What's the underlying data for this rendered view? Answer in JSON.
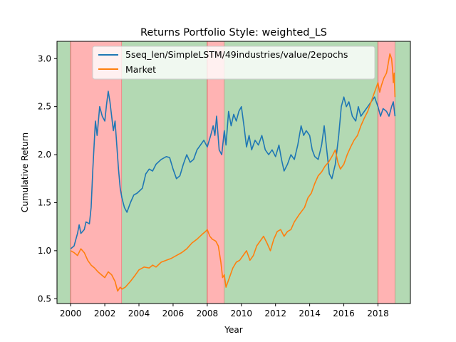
{
  "chart_data": {
    "type": "line",
    "title": "Returns Portfolio Style: weighted_LS",
    "xlabel": "Year",
    "ylabel": "Cumulative Return",
    "xlim": [
      1999.2,
      2019.9
    ],
    "ylim": [
      0.45,
      3.18
    ],
    "xticks": [
      2000,
      2002,
      2004,
      2006,
      2008,
      2010,
      2012,
      2014,
      2016,
      2018
    ],
    "xtick_labels": [
      "2000",
      "2002",
      "2004",
      "2006",
      "2008",
      "2010",
      "2012",
      "2014",
      "2016",
      "2018"
    ],
    "yticks": [
      0.5,
      1.0,
      1.5,
      2.0,
      2.5,
      3.0
    ],
    "ytick_labels": [
      "0.5",
      "1.0",
      "1.5",
      "2.0",
      "2.5",
      "3.0"
    ],
    "legend_position": "top-center",
    "regimes": [
      {
        "state": "bull",
        "start": 1999.2,
        "end": 2000.0,
        "color": "#b3d9b3"
      },
      {
        "state": "bear",
        "start": 2000.0,
        "end": 2003.0,
        "color": "#ffb3b3"
      },
      {
        "state": "bull",
        "start": 2003.0,
        "end": 2008.0,
        "color": "#b3d9b3"
      },
      {
        "state": "bear",
        "start": 2008.0,
        "end": 2009.0,
        "color": "#ffb3b3"
      },
      {
        "state": "bull",
        "start": 2009.0,
        "end": 2018.0,
        "color": "#b3d9b3"
      },
      {
        "state": "bear",
        "start": 2018.0,
        "end": 2019.0,
        "color": "#ffb3b3"
      },
      {
        "state": "bull",
        "start": 2019.0,
        "end": 2019.9,
        "color": "#b3d9b3"
      }
    ],
    "series": [
      {
        "name": "5seq_len/SimpleLSTM/49industries/value/2epochs",
        "color": "#1f77b4",
        "points": [
          [
            2000.0,
            1.02
          ],
          [
            2000.2,
            1.05
          ],
          [
            2000.4,
            1.18
          ],
          [
            2000.5,
            1.27
          ],
          [
            2000.6,
            1.18
          ],
          [
            2000.8,
            1.22
          ],
          [
            2000.9,
            1.3
          ],
          [
            2001.1,
            1.28
          ],
          [
            2001.2,
            1.45
          ],
          [
            2001.3,
            1.85
          ],
          [
            2001.45,
            2.35
          ],
          [
            2001.55,
            2.2
          ],
          [
            2001.7,
            2.5
          ],
          [
            2001.85,
            2.4
          ],
          [
            2002.0,
            2.35
          ],
          [
            2002.1,
            2.52
          ],
          [
            2002.2,
            2.66
          ],
          [
            2002.3,
            2.55
          ],
          [
            2002.4,
            2.4
          ],
          [
            2002.5,
            2.25
          ],
          [
            2002.6,
            2.35
          ],
          [
            2002.7,
            2.1
          ],
          [
            2002.8,
            1.85
          ],
          [
            2002.9,
            1.65
          ],
          [
            2003.0,
            1.55
          ],
          [
            2003.15,
            1.45
          ],
          [
            2003.3,
            1.4
          ],
          [
            2003.5,
            1.5
          ],
          [
            2003.7,
            1.58
          ],
          [
            2003.9,
            1.6
          ],
          [
            2004.2,
            1.65
          ],
          [
            2004.4,
            1.8
          ],
          [
            2004.6,
            1.85
          ],
          [
            2004.8,
            1.83
          ],
          [
            2005.0,
            1.9
          ],
          [
            2005.3,
            1.95
          ],
          [
            2005.6,
            1.98
          ],
          [
            2005.8,
            1.97
          ],
          [
            2006.0,
            1.85
          ],
          [
            2006.2,
            1.75
          ],
          [
            2006.4,
            1.78
          ],
          [
            2006.6,
            1.9
          ],
          [
            2006.8,
            2.0
          ],
          [
            2007.0,
            1.92
          ],
          [
            2007.2,
            1.95
          ],
          [
            2007.4,
            2.05
          ],
          [
            2007.6,
            2.1
          ],
          [
            2007.8,
            2.15
          ],
          [
            2008.0,
            2.08
          ],
          [
            2008.2,
            2.2
          ],
          [
            2008.35,
            2.3
          ],
          [
            2008.45,
            2.2
          ],
          [
            2008.55,
            2.4
          ],
          [
            2008.7,
            2.05
          ],
          [
            2008.85,
            2.0
          ],
          [
            2009.0,
            2.25
          ],
          [
            2009.1,
            2.1
          ],
          [
            2009.25,
            2.45
          ],
          [
            2009.4,
            2.3
          ],
          [
            2009.55,
            2.42
          ],
          [
            2009.7,
            2.35
          ],
          [
            2009.85,
            2.45
          ],
          [
            2010.0,
            2.5
          ],
          [
            2010.15,
            2.3
          ],
          [
            2010.3,
            2.08
          ],
          [
            2010.45,
            2.2
          ],
          [
            2010.6,
            2.05
          ],
          [
            2010.8,
            2.15
          ],
          [
            2011.0,
            2.1
          ],
          [
            2011.2,
            2.2
          ],
          [
            2011.4,
            2.05
          ],
          [
            2011.6,
            2.0
          ],
          [
            2011.8,
            2.05
          ],
          [
            2012.0,
            1.98
          ],
          [
            2012.2,
            2.1
          ],
          [
            2012.35,
            1.95
          ],
          [
            2012.5,
            1.83
          ],
          [
            2012.7,
            1.9
          ],
          [
            2012.9,
            2.0
          ],
          [
            2013.1,
            1.95
          ],
          [
            2013.3,
            2.1
          ],
          [
            2013.5,
            2.3
          ],
          [
            2013.65,
            2.2
          ],
          [
            2013.8,
            2.25
          ],
          [
            2014.0,
            2.2
          ],
          [
            2014.15,
            2.05
          ],
          [
            2014.3,
            1.98
          ],
          [
            2014.5,
            1.95
          ],
          [
            2014.7,
            2.1
          ],
          [
            2014.85,
            2.3
          ],
          [
            2015.0,
            2.05
          ],
          [
            2015.15,
            1.8
          ],
          [
            2015.3,
            1.75
          ],
          [
            2015.5,
            1.9
          ],
          [
            2015.7,
            2.2
          ],
          [
            2015.85,
            2.5
          ],
          [
            2016.0,
            2.6
          ],
          [
            2016.15,
            2.5
          ],
          [
            2016.3,
            2.55
          ],
          [
            2016.5,
            2.4
          ],
          [
            2016.7,
            2.35
          ],
          [
            2016.85,
            2.5
          ],
          [
            2017.0,
            2.4
          ],
          [
            2017.2,
            2.45
          ],
          [
            2017.4,
            2.5
          ],
          [
            2017.6,
            2.55
          ],
          [
            2017.8,
            2.6
          ],
          [
            2018.0,
            2.5
          ],
          [
            2018.15,
            2.4
          ],
          [
            2018.3,
            2.48
          ],
          [
            2018.5,
            2.45
          ],
          [
            2018.65,
            2.4
          ],
          [
            2018.8,
            2.5
          ],
          [
            2018.9,
            2.55
          ],
          [
            2019.0,
            2.4
          ]
        ]
      },
      {
        "name": "Market",
        "color": "#ff7f0e",
        "points": [
          [
            2000.0,
            1.0
          ],
          [
            2000.2,
            0.98
          ],
          [
            2000.4,
            0.95
          ],
          [
            2000.6,
            1.02
          ],
          [
            2000.8,
            0.98
          ],
          [
            2001.0,
            0.9
          ],
          [
            2001.2,
            0.85
          ],
          [
            2001.4,
            0.82
          ],
          [
            2001.6,
            0.78
          ],
          [
            2001.8,
            0.75
          ],
          [
            2002.0,
            0.72
          ],
          [
            2002.2,
            0.78
          ],
          [
            2002.4,
            0.75
          ],
          [
            2002.6,
            0.68
          ],
          [
            2002.75,
            0.58
          ],
          [
            2002.9,
            0.62
          ],
          [
            2003.0,
            0.6
          ],
          [
            2003.2,
            0.62
          ],
          [
            2003.5,
            0.68
          ],
          [
            2003.8,
            0.75
          ],
          [
            2004.0,
            0.8
          ],
          [
            2004.3,
            0.83
          ],
          [
            2004.6,
            0.82
          ],
          [
            2004.8,
            0.85
          ],
          [
            2005.0,
            0.83
          ],
          [
            2005.3,
            0.88
          ],
          [
            2005.6,
            0.9
          ],
          [
            2005.9,
            0.92
          ],
          [
            2006.2,
            0.95
          ],
          [
            2006.5,
            0.98
          ],
          [
            2006.8,
            1.02
          ],
          [
            2007.1,
            1.08
          ],
          [
            2007.4,
            1.12
          ],
          [
            2007.7,
            1.17
          ],
          [
            2007.9,
            1.2
          ],
          [
            2008.0,
            1.22
          ],
          [
            2008.15,
            1.15
          ],
          [
            2008.3,
            1.12
          ],
          [
            2008.5,
            1.1
          ],
          [
            2008.65,
            1.05
          ],
          [
            2008.8,
            0.88
          ],
          [
            2008.9,
            0.72
          ],
          [
            2009.0,
            0.75
          ],
          [
            2009.1,
            0.62
          ],
          [
            2009.3,
            0.72
          ],
          [
            2009.5,
            0.82
          ],
          [
            2009.7,
            0.88
          ],
          [
            2009.9,
            0.9
          ],
          [
            2010.1,
            0.95
          ],
          [
            2010.3,
            1.0
          ],
          [
            2010.5,
            0.9
          ],
          [
            2010.7,
            0.95
          ],
          [
            2010.9,
            1.05
          ],
          [
            2011.1,
            1.1
          ],
          [
            2011.3,
            1.15
          ],
          [
            2011.5,
            1.08
          ],
          [
            2011.7,
            1.0
          ],
          [
            2011.9,
            1.12
          ],
          [
            2012.1,
            1.2
          ],
          [
            2012.3,
            1.22
          ],
          [
            2012.5,
            1.15
          ],
          [
            2012.7,
            1.2
          ],
          [
            2012.9,
            1.22
          ],
          [
            2013.1,
            1.3
          ],
          [
            2013.4,
            1.38
          ],
          [
            2013.7,
            1.45
          ],
          [
            2013.9,
            1.55
          ],
          [
            2014.1,
            1.6
          ],
          [
            2014.3,
            1.7
          ],
          [
            2014.5,
            1.78
          ],
          [
            2014.7,
            1.82
          ],
          [
            2014.9,
            1.88
          ],
          [
            2015.1,
            1.92
          ],
          [
            2015.3,
            1.98
          ],
          [
            2015.5,
            2.05
          ],
          [
            2015.65,
            1.92
          ],
          [
            2015.8,
            1.85
          ],
          [
            2016.0,
            1.9
          ],
          [
            2016.2,
            2.0
          ],
          [
            2016.4,
            2.08
          ],
          [
            2016.6,
            2.15
          ],
          [
            2016.8,
            2.2
          ],
          [
            2017.0,
            2.3
          ],
          [
            2017.2,
            2.38
          ],
          [
            2017.4,
            2.45
          ],
          [
            2017.6,
            2.55
          ],
          [
            2017.8,
            2.65
          ],
          [
            2018.0,
            2.75
          ],
          [
            2018.1,
            2.65
          ],
          [
            2018.2,
            2.72
          ],
          [
            2018.35,
            2.8
          ],
          [
            2018.5,
            2.85
          ],
          [
            2018.6,
            2.95
          ],
          [
            2018.7,
            3.05
          ],
          [
            2018.8,
            3.0
          ],
          [
            2018.85,
            2.9
          ],
          [
            2018.9,
            2.75
          ],
          [
            2018.95,
            2.85
          ],
          [
            2019.0,
            2.6
          ]
        ]
      }
    ]
  }
}
